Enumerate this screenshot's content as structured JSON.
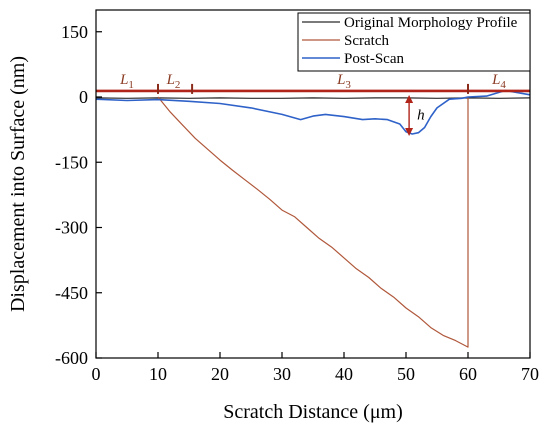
{
  "chart_data": {
    "type": "line",
    "xlabel": "Scratch Distance (μm)",
    "ylabel": "Displacement into Surface (nm)",
    "xlim": [
      0,
      70
    ],
    "ylim": [
      -600,
      200
    ],
    "xticks": [
      0,
      10,
      20,
      30,
      40,
      50,
      60,
      70
    ],
    "yticks": [
      -600,
      -450,
      -300,
      -150,
      0,
      150
    ],
    "grid": false,
    "legend_position": "top-right",
    "series": [
      {
        "name": "Original Morphology Profile",
        "color": "#2b2b2b",
        "x": [
          0,
          5,
          10,
          15,
          20,
          25,
          30,
          35,
          40,
          45,
          50,
          55,
          60,
          65,
          70
        ],
        "y": [
          -2,
          -3,
          -2,
          -3,
          -2,
          -3,
          -3,
          -2,
          -3,
          -2,
          -2,
          -3,
          -2,
          -3,
          -2
        ]
      },
      {
        "name": "Scratch",
        "color": "#b0583b",
        "x": [
          10,
          12,
          14,
          16,
          18,
          20,
          22,
          24,
          26,
          28,
          30,
          32,
          34,
          36,
          38,
          40,
          42,
          44,
          46,
          48,
          50,
          52,
          54,
          56,
          58,
          60,
          60
        ],
        "y": [
          0,
          -35,
          -65,
          -95,
          -120,
          -145,
          -168,
          -190,
          -212,
          -235,
          -260,
          -275,
          -300,
          -325,
          -345,
          -370,
          -395,
          -415,
          -440,
          -460,
          -485,
          -505,
          -530,
          -548,
          -560,
          -575,
          0
        ]
      },
      {
        "name": "Post-Scan",
        "color": "#2f62c9",
        "x": [
          0,
          5,
          10,
          15,
          20,
          25,
          30,
          33,
          35,
          37,
          40,
          43,
          45,
          47,
          49,
          50,
          51,
          52,
          53,
          54,
          55,
          57,
          59,
          60,
          63,
          66,
          70
        ],
        "y": [
          -5,
          -8,
          -6,
          -10,
          -15,
          -25,
          -40,
          -52,
          -44,
          -40,
          -45,
          -52,
          -50,
          -52,
          -62,
          -80,
          -85,
          -82,
          -70,
          -45,
          -25,
          -5,
          -3,
          0,
          2,
          15,
          5
        ]
      }
    ],
    "annotations": {
      "segments": [
        {
          "name": "L",
          "sub": "1",
          "x": 5
        },
        {
          "name": "L",
          "sub": "2",
          "x": 12.5
        },
        {
          "name": "L",
          "sub": "3",
          "x": 40
        },
        {
          "name": "L",
          "sub": "4",
          "x": 65
        }
      ],
      "segment_boundaries": [
        10,
        15.5,
        60
      ],
      "surface_level": 14,
      "depth_marker": {
        "label": "h",
        "x": 50.5,
        "y_top": 0,
        "y_bottom": -85
      }
    }
  }
}
